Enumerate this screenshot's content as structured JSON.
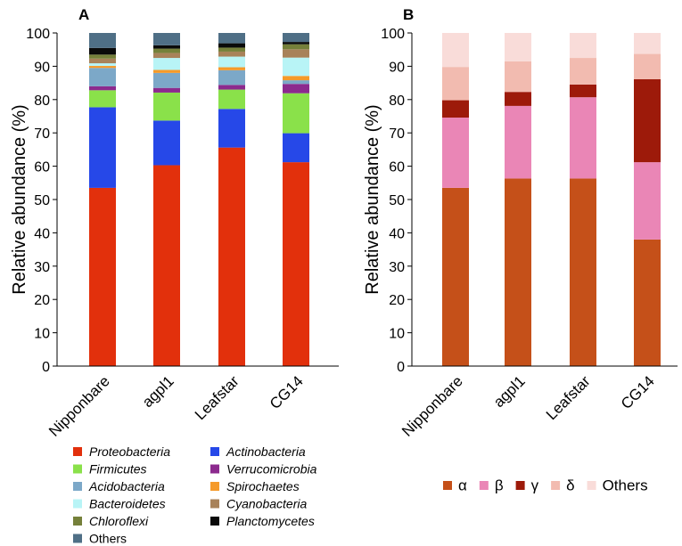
{
  "chart_data": [
    {
      "panel": "A",
      "type": "stacked-bar",
      "title": "",
      "xlabel": "",
      "ylabel": "Relative abundance (%)",
      "ylim": [
        0,
        100
      ],
      "yticks": [
        "0",
        "10",
        "20",
        "30",
        "40",
        "50",
        "60",
        "70",
        "80",
        "90",
        "100"
      ],
      "grid": false,
      "legend_position": "bottom",
      "categories": [
        "Nipponbare",
        "agpl1",
        "Leafstar",
        "CG14"
      ],
      "series": [
        {
          "name": "Proteobacteria",
          "italic": true,
          "color": "#e2300c",
          "values": [
            53.5,
            60.3,
            65.6,
            61.2
          ]
        },
        {
          "name": "Actinobacteria",
          "italic": true,
          "color": "#2648e8",
          "values": [
            24.2,
            13.4,
            11.6,
            8.7
          ]
        },
        {
          "name": "Firmicutes",
          "italic": true,
          "color": "#8ae14a",
          "values": [
            5.1,
            8.4,
            5.8,
            12.0
          ]
        },
        {
          "name": "Verrucomicrobia",
          "italic": true,
          "color": "#8c2a8e",
          "values": [
            1.2,
            1.4,
            1.4,
            2.8
          ]
        },
        {
          "name": "Acidobacteria",
          "italic": true,
          "color": "#7ca8c8",
          "values": [
            5.5,
            4.5,
            4.4,
            1.1
          ]
        },
        {
          "name": "Spirochaetes",
          "italic": true,
          "color": "#f59a2a",
          "values": [
            0.6,
            0.9,
            0.9,
            1.3
          ]
        },
        {
          "name": "Bacteroidetes",
          "italic": true,
          "color": "#b8f4f6",
          "values": [
            0.8,
            3.6,
            3.2,
            5.5
          ]
        },
        {
          "name": "Cyanobacteria",
          "italic": true,
          "color": "#a8825a",
          "values": [
            1.4,
            1.5,
            1.5,
            2.5
          ]
        },
        {
          "name": "Chloroflexi",
          "italic": true,
          "color": "#75803a",
          "values": [
            1.2,
            1.3,
            1.2,
            1.5
          ]
        },
        {
          "name": "Planctomycetes",
          "italic": true,
          "color": "#0a0a0a",
          "values": [
            2.0,
            1.0,
            1.3,
            0.7
          ]
        },
        {
          "name": "Others",
          "italic": false,
          "color": "#4f6f86",
          "values": [
            4.5,
            3.7,
            3.1,
            2.7
          ]
        }
      ]
    },
    {
      "panel": "B",
      "type": "stacked-bar",
      "title": "",
      "xlabel": "",
      "ylabel": "Relative abundance (%)",
      "ylim": [
        0,
        100
      ],
      "yticks": [
        "0",
        "10",
        "20",
        "30",
        "40",
        "50",
        "60",
        "70",
        "80",
        "90",
        "100"
      ],
      "grid": false,
      "legend_position": "bottom",
      "categories": [
        "Nipponbare",
        "agpl1",
        "Leafstar",
        "CG14"
      ],
      "series": [
        {
          "name": "α",
          "color": "#c55019",
          "values": [
            53.5,
            56.3,
            56.3,
            38.0
          ]
        },
        {
          "name": "β",
          "color": "#ea86b6",
          "values": [
            21.1,
            21.8,
            24.4,
            23.2
          ]
        },
        {
          "name": "γ",
          "color": "#9d1a0a",
          "values": [
            5.2,
            4.2,
            3.8,
            24.9
          ]
        },
        {
          "name": "δ",
          "color": "#f2bbb0",
          "values": [
            10.0,
            9.2,
            8.0,
            7.6
          ]
        },
        {
          "name": "Others",
          "color": "#f9dcd9",
          "values": [
            10.2,
            8.5,
            7.5,
            6.3
          ]
        }
      ]
    }
  ]
}
